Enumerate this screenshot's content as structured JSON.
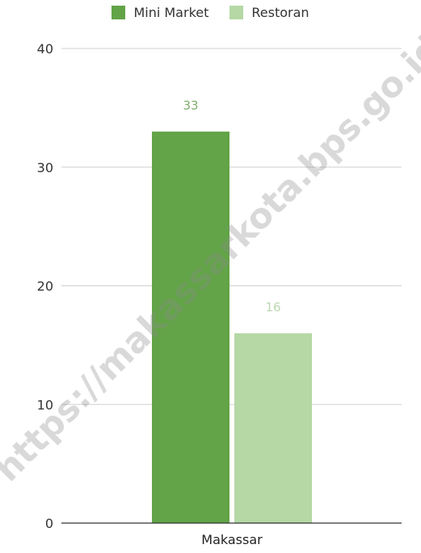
{
  "legend": [
    {
      "name": "Mini Market",
      "color": "#62a447"
    },
    {
      "name": "Restoran",
      "color": "#b5d8a5"
    }
  ],
  "watermark": "https://makassarkota.bps.go.id",
  "chart_data": {
    "type": "bar",
    "categories": [
      "Makassar"
    ],
    "series": [
      {
        "name": "Mini Market",
        "values": [
          33
        ],
        "color": "#62a447",
        "label_color": "#7fae6c"
      },
      {
        "name": "Restoran",
        "values": [
          16
        ],
        "color": "#b5d8a5",
        "label_color": "#bcd6b0"
      }
    ],
    "ylim": [
      0,
      40
    ],
    "yticks": [
      "0",
      "10",
      "20",
      "30",
      "40"
    ],
    "grid": true,
    "legend_position": "top",
    "data_labels": [
      "33",
      "16"
    ]
  }
}
